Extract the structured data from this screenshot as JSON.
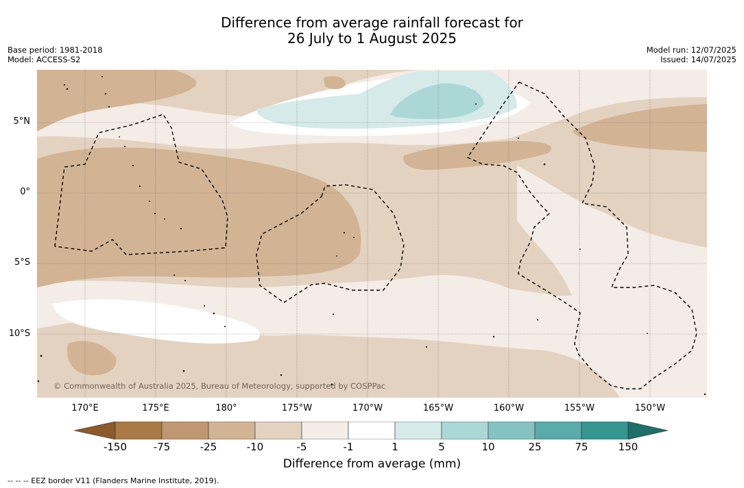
{
  "title": {
    "line1": "Difference from average rainfall forecast for",
    "line2": "26 July to 1 August 2025"
  },
  "meta": {
    "base_period": "Base period: 1981-2018",
    "model": "Model: ACCESS-S2",
    "model_run": "Model run: 12/07/2025",
    "issued": "Issued: 14/07/2025"
  },
  "map": {
    "copyright": "© Commonwealth of Australia 2025, Bureau of Meteorology, supported by COSPPac",
    "lat_labels": [
      "5°N",
      "0°",
      "5°S",
      "10°S"
    ],
    "lon_labels": [
      "170°E",
      "175°E",
      "180°",
      "175°W",
      "170°W",
      "165°W",
      "160°W",
      "155°W",
      "150°W"
    ]
  },
  "colorbar": {
    "ticks": [
      "-150",
      "-75",
      "-25",
      "-10",
      "-5",
      "-1",
      "1",
      "5",
      "10",
      "25",
      "75",
      "150"
    ],
    "colors": [
      "#8c5a2b",
      "#a97a45",
      "#bf9872",
      "#d2b393",
      "#e4d2c1",
      "#f4ece6",
      "#ffffff",
      "#d6eaea",
      "#acd7d7",
      "#84c3c1",
      "#5aabaa",
      "#35978f",
      "#1d6f6a"
    ],
    "label": "Difference from average (mm)"
  },
  "footnote": "--  --  -- EEZ border V11 (Flanders Marine Institute, 2019)."
}
